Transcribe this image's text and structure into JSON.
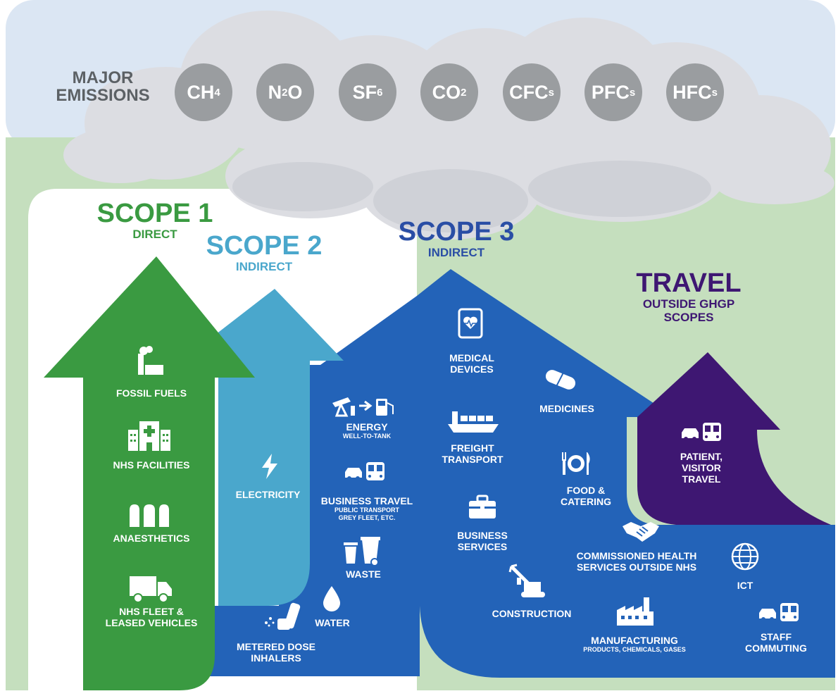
{
  "major_emissions": {
    "line1": "MAJOR",
    "line2": "EMISSIONS"
  },
  "gases": [
    {
      "base": "CH",
      "sub": "4"
    },
    {
      "base": "N",
      "sub": "2",
      "suffix": "O"
    },
    {
      "base": "SF",
      "sub": "6"
    },
    {
      "base": "CO",
      "sub": "2"
    },
    {
      "base": "CFC",
      "sub": "s"
    },
    {
      "base": "PFC",
      "sub": "s"
    },
    {
      "base": "HFC",
      "sub": "s"
    }
  ],
  "scopes": {
    "scope1": {
      "title": "SCOPE 1",
      "subtitle": "DIRECT"
    },
    "scope2": {
      "title": "SCOPE 2",
      "subtitle": "INDIRECT"
    },
    "scope3": {
      "title": "SCOPE 3",
      "subtitle": "INDIRECT"
    },
    "travel": {
      "title": "TRAVEL",
      "subtitle1": "OUTSIDE GHGP",
      "subtitle2": "SCOPES"
    }
  },
  "scope1_items": {
    "fossil_fuels": "FOSSIL FUELS",
    "nhs_facilities": "NHS FACILITIES",
    "anaesthetics": "ANAESTHETICS",
    "fleet_line1": "NHS FLEET &",
    "fleet_line2": "LEASED VEHICLES"
  },
  "scope2_items": {
    "electricity": "ELECTRICITY"
  },
  "scope3_items": {
    "energy": "ENERGY",
    "energy_sub": "WELL-TO-TANK",
    "business_travel": "BUSINESS TRAVEL",
    "business_travel_sub1": "PUBLIC TRANSPORT",
    "business_travel_sub2": "GREY FLEET, ETC.",
    "waste": "WASTE",
    "water": "WATER",
    "mdi_line1": "METERED DOSE",
    "mdi_line2": "INHALERS",
    "medical_devices_line1": "MEDICAL",
    "medical_devices_line2": "DEVICES",
    "medicines": "MEDICINES",
    "freight_line1": "FREIGHT",
    "freight_line2": "TRANSPORT",
    "food_line1": "FOOD &",
    "food_line2": "CATERING",
    "business_services_line1": "BUSINESS",
    "business_services_line2": "SERVICES",
    "commissioned_line1": "COMMISSIONED HEALTH",
    "commissioned_line2": "SERVICES OUTSIDE NHS",
    "ict": "ICT",
    "construction": "CONSTRUCTION",
    "manufacturing": "MANUFACTURING",
    "manufacturing_sub": "PRODUCTS, CHEMICALS, GASES",
    "staff_line1": "STAFF",
    "staff_line2": "COMMUTING"
  },
  "travel_items": {
    "line1": "PATIENT,",
    "line2": "VISITOR",
    "line3": "TRAVEL"
  },
  "colors": {
    "sky": "#dbe6f3",
    "ground": "#c5dfbe",
    "cloud": "#dcdde2",
    "scope1": "#3a9a41",
    "scope2": "#4aa7cc",
    "scope3": "#2363b8",
    "travel": "#3e1772",
    "gas": "#9a9da0"
  }
}
